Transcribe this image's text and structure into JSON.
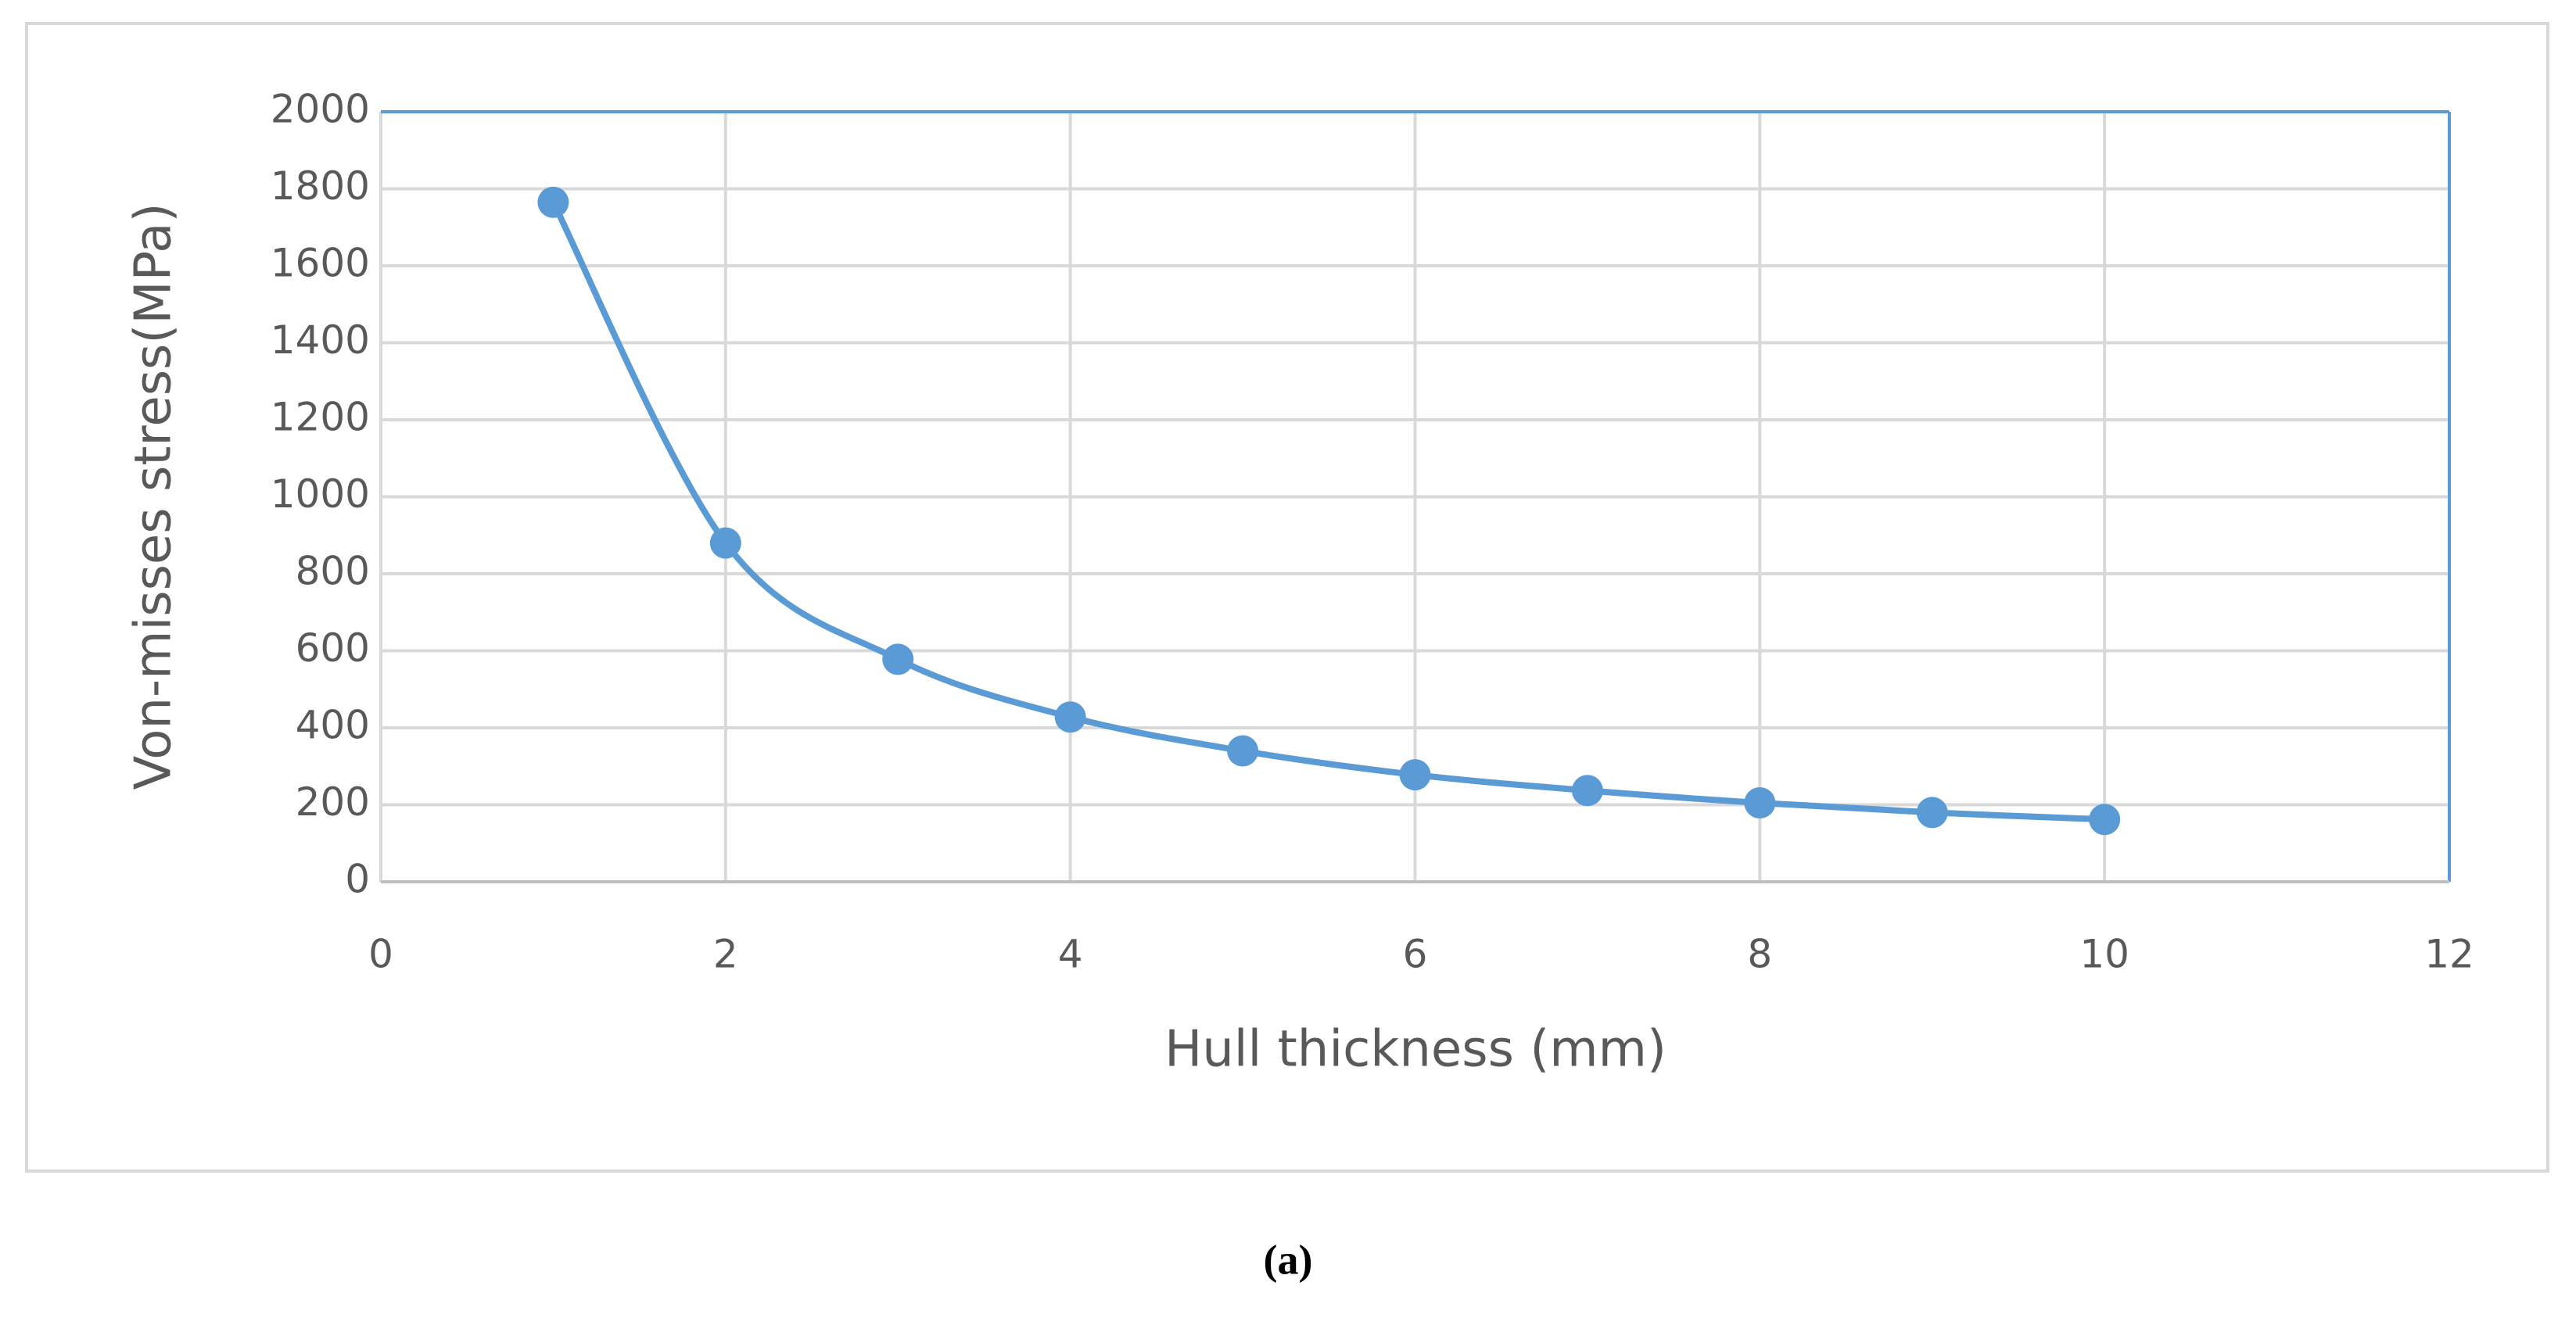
{
  "chart_data": {
    "type": "line",
    "x": [
      1,
      2,
      3,
      4,
      5,
      6,
      7,
      8,
      9,
      10
    ],
    "values": [
      1765,
      880,
      578,
      428,
      340,
      278,
      237,
      205,
      180,
      162
    ],
    "color": "#5b9bd5",
    "xlabel": "Hull thickness (mm)",
    "ylabel": "Von-misses stress(MPa)",
    "xlim": [
      0,
      12
    ],
    "xticks": [
      0,
      2,
      4,
      6,
      8,
      10,
      12
    ],
    "ylim": [
      0,
      2000
    ],
    "yticks": [
      0,
      200,
      400,
      600,
      800,
      1000,
      1200,
      1400,
      1600,
      1800,
      2000
    ],
    "grid": true,
    "smooth": true,
    "markers": true
  },
  "caption": "(a)"
}
